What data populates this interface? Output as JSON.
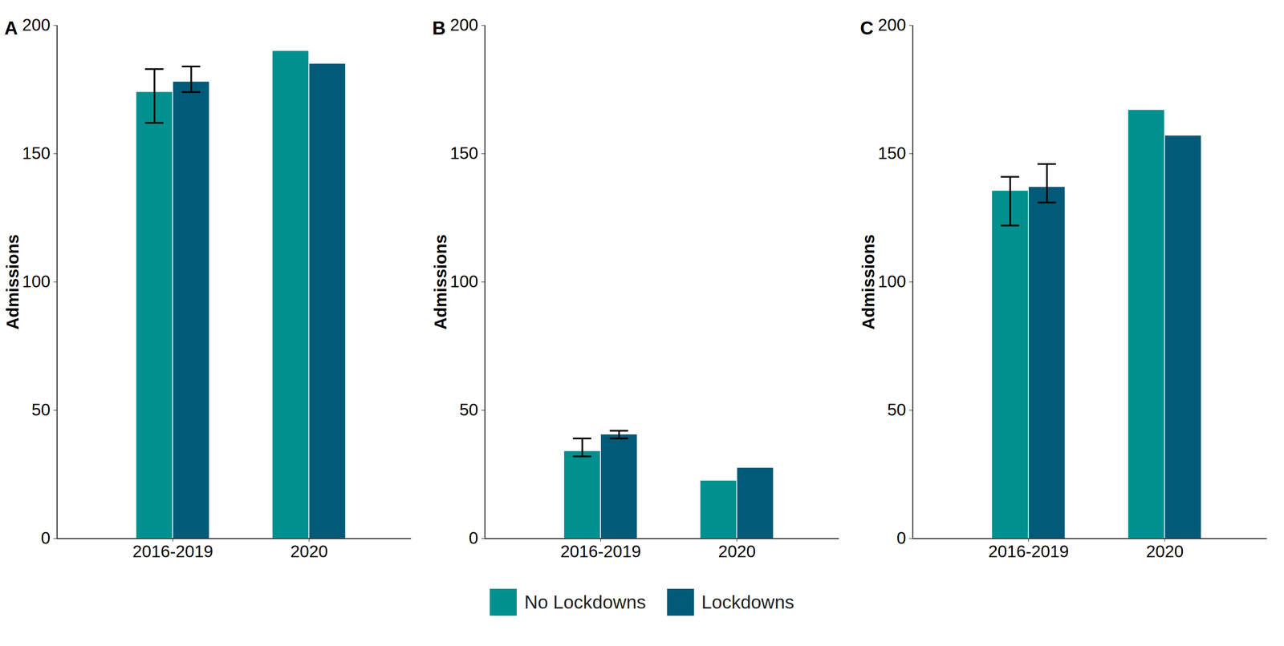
{
  "chart_data": [
    {
      "type": "bar",
      "title": "A",
      "ylabel": "Admissions",
      "categories": [
        "2016-2019",
        "2020"
      ],
      "series": [
        {
          "name": "No Lockdowns",
          "color": "#00908f",
          "values": [
            174,
            190
          ],
          "errors": [
            [
              162,
              183
            ],
            null
          ]
        },
        {
          "name": "Lockdowns",
          "color": "#005a78",
          "values": [
            178,
            185
          ],
          "errors": [
            [
              174,
              184
            ],
            null
          ]
        }
      ],
      "ylim": [
        0,
        200
      ],
      "yticks": [
        0,
        50,
        100,
        150,
        200
      ],
      "legend": "bottom"
    },
    {
      "type": "bar",
      "title": "B",
      "ylabel": "Admissions",
      "categories": [
        "2016-2019",
        "2020"
      ],
      "series": [
        {
          "name": "No Lockdowns",
          "color": "#00908f",
          "values": [
            34,
            22.5
          ],
          "errors": [
            [
              32,
              39
            ],
            null
          ]
        },
        {
          "name": "Lockdowns",
          "color": "#005a78",
          "values": [
            40.5,
            27.5
          ],
          "errors": [
            [
              39,
              42
            ],
            null
          ]
        }
      ],
      "ylim": [
        0,
        200
      ],
      "yticks": [
        0,
        50,
        100,
        150,
        200
      ],
      "legend": "bottom"
    },
    {
      "type": "bar",
      "title": "C",
      "ylabel": "Admissions",
      "categories": [
        "2016-2019",
        "2020"
      ],
      "series": [
        {
          "name": "No Lockdowns",
          "color": "#00908f",
          "values": [
            135.5,
            167
          ],
          "errors": [
            [
              122,
              141
            ],
            null
          ]
        },
        {
          "name": "Lockdowns",
          "color": "#005a78",
          "values": [
            137,
            157
          ],
          "errors": [
            [
              131,
              146
            ],
            null
          ]
        }
      ],
      "ylim": [
        0,
        200
      ],
      "yticks": [
        0,
        50,
        100,
        150,
        200
      ],
      "legend": "bottom"
    }
  ]
}
